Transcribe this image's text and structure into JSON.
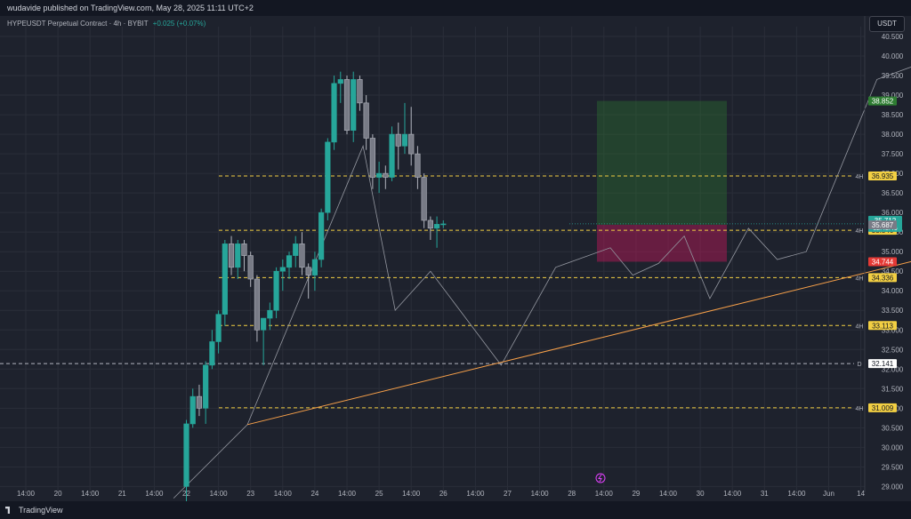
{
  "header": {
    "published": "wudavide published on TradingView.com, May 28, 2025 11:11 UTC+2",
    "symbol": "HYPEUSDT Perpetual Contract · 4h · BYBIT",
    "change": "+0.025 (+0.07%)",
    "currency": "USDT"
  },
  "footer": {
    "logo": "TradingView"
  },
  "colors": {
    "background": "#1e222d",
    "grid": "#2a2e39",
    "up": "#26a69a",
    "down": "#b2b5be",
    "text": "#d1d4dc",
    "level": "#f2cf43",
    "trend": "#f7a049",
    "reward": "#2e7d32",
    "risk": "#c2185b"
  },
  "chart_data": {
    "type": "candlestick",
    "timeframe": "4h",
    "x_tick_labels": [
      "14:00",
      "20",
      "14:00",
      "21",
      "14:00",
      "22",
      "14:00",
      "23",
      "14:00",
      "24",
      "14:00",
      "25",
      "14:00",
      "26",
      "14:00",
      "27",
      "14:00",
      "28",
      "14:00",
      "29",
      "14:00",
      "30",
      "14:00",
      "31",
      "14:00",
      "Jun",
      "14"
    ],
    "y_tick_labels": [
      "29.000",
      "29.500",
      "30.000",
      "30.500",
      "31.000",
      "31.500",
      "32.000",
      "32.500",
      "33.000",
      "33.500",
      "34.000",
      "34.500",
      "35.000",
      "35.500",
      "36.000",
      "36.500",
      "37.000",
      "37.500",
      "38.000",
      "38.500",
      "39.000",
      "39.500",
      "40.000",
      "40.500"
    ],
    "ylim": [
      28.85,
      40.75
    ],
    "candle_start_index": 5,
    "candles": [
      {
        "o": 29.0,
        "h": 30.7,
        "l": 28.6,
        "c": 30.6
      },
      {
        "o": 30.6,
        "h": 31.5,
        "l": 30.5,
        "c": 31.3
      },
      {
        "o": 31.3,
        "h": 31.6,
        "l": 30.8,
        "c": 31.0
      },
      {
        "o": 31.0,
        "h": 32.2,
        "l": 30.6,
        "c": 32.1
      },
      {
        "o": 32.1,
        "h": 33.0,
        "l": 32.0,
        "c": 32.7
      },
      {
        "o": 32.7,
        "h": 33.5,
        "l": 32.4,
        "c": 33.4
      },
      {
        "o": 33.4,
        "h": 35.3,
        "l": 33.1,
        "c": 35.2
      },
      {
        "o": 35.2,
        "h": 35.4,
        "l": 34.4,
        "c": 34.6
      },
      {
        "o": 34.6,
        "h": 35.3,
        "l": 34.3,
        "c": 35.2
      },
      {
        "o": 35.2,
        "h": 35.3,
        "l": 34.5,
        "c": 34.9
      },
      {
        "o": 34.9,
        "h": 35.0,
        "l": 34.1,
        "c": 34.3
      },
      {
        "o": 34.3,
        "h": 34.4,
        "l": 32.7,
        "c": 33.0
      },
      {
        "o": 33.0,
        "h": 33.3,
        "l": 32.1,
        "c": 33.3
      },
      {
        "o": 33.3,
        "h": 33.7,
        "l": 33.0,
        "c": 33.5
      },
      {
        "o": 33.5,
        "h": 34.6,
        "l": 33.3,
        "c": 34.5
      },
      {
        "o": 34.5,
        "h": 34.8,
        "l": 34.0,
        "c": 34.6
      },
      {
        "o": 34.6,
        "h": 35.0,
        "l": 34.3,
        "c": 34.9
      },
      {
        "o": 34.9,
        "h": 35.4,
        "l": 34.6,
        "c": 35.2
      },
      {
        "o": 35.2,
        "h": 35.5,
        "l": 34.4,
        "c": 34.6
      },
      {
        "o": 34.6,
        "h": 34.7,
        "l": 33.8,
        "c": 34.4
      },
      {
        "o": 34.4,
        "h": 35.0,
        "l": 34.0,
        "c": 34.8
      },
      {
        "o": 34.8,
        "h": 36.1,
        "l": 34.6,
        "c": 36.0
      },
      {
        "o": 36.0,
        "h": 37.9,
        "l": 35.8,
        "c": 37.8
      },
      {
        "o": 37.8,
        "h": 39.5,
        "l": 37.6,
        "c": 39.3
      },
      {
        "o": 39.3,
        "h": 39.6,
        "l": 38.8,
        "c": 39.4
      },
      {
        "o": 39.4,
        "h": 39.5,
        "l": 38.0,
        "c": 38.1
      },
      {
        "o": 38.1,
        "h": 39.6,
        "l": 37.8,
        "c": 39.4
      },
      {
        "o": 39.4,
        "h": 39.5,
        "l": 38.6,
        "c": 38.8
      },
      {
        "o": 38.8,
        "h": 39.0,
        "l": 37.6,
        "c": 37.9
      },
      {
        "o": 37.9,
        "h": 38.0,
        "l": 36.6,
        "c": 36.9
      },
      {
        "o": 36.9,
        "h": 37.3,
        "l": 36.5,
        "c": 37.0
      },
      {
        "o": 37.0,
        "h": 37.2,
        "l": 36.6,
        "c": 36.9
      },
      {
        "o": 36.9,
        "h": 38.2,
        "l": 36.8,
        "c": 38.0
      },
      {
        "o": 38.0,
        "h": 38.3,
        "l": 37.1,
        "c": 37.7
      },
      {
        "o": 37.7,
        "h": 38.8,
        "l": 37.5,
        "c": 38.0
      },
      {
        "o": 38.0,
        "h": 38.7,
        "l": 37.2,
        "c": 37.5
      },
      {
        "o": 37.5,
        "h": 37.7,
        "l": 36.6,
        "c": 36.9
      },
      {
        "o": 36.9,
        "h": 37.0,
        "l": 35.6,
        "c": 35.8
      },
      {
        "o": 35.8,
        "h": 35.9,
        "l": 35.3,
        "c": 35.6
      },
      {
        "o": 35.6,
        "h": 35.9,
        "l": 35.1,
        "c": 35.7
      },
      {
        "o": 35.7,
        "h": 35.8,
        "l": 35.6,
        "c": 35.71
      }
    ],
    "levels": [
      {
        "value": 36.935,
        "tf": "4H",
        "label": "36.935"
      },
      {
        "value": 35.546,
        "tf": "4H",
        "label": "35.546"
      },
      {
        "value": 34.336,
        "tf": "4H",
        "label": "34.336"
      },
      {
        "value": 33.113,
        "tf": "4H",
        "label": "33.113"
      },
      {
        "value": 32.141,
        "tf": "D",
        "label": "32.141"
      },
      {
        "value": 31.009,
        "tf": "4H",
        "label": "31.009"
      }
    ],
    "position": {
      "x_start": 46.8,
      "x_end": 50.8,
      "entry": 35.687,
      "target": 38.852,
      "stop": 34.744,
      "target_label": "38.852",
      "entry_label": "35.687",
      "stop_label": "34.744"
    },
    "trendline": {
      "x1": 6.9,
      "y1": 30.58,
      "x2": 50.4,
      "y2": 39.35
    },
    "zigzag": [
      {
        "x": 4.6,
        "y": 28.7
      },
      {
        "x": 6.9,
        "y": 30.58
      },
      {
        "x": 10.5,
        "y": 37.7
      },
      {
        "x": 11.5,
        "y": 33.5
      },
      {
        "x": 12.6,
        "y": 34.5
      },
      {
        "x": 14.8,
        "y": 32.1
      },
      {
        "x": 16.5,
        "y": 34.6
      },
      {
        "x": 18.2,
        "y": 35.1
      },
      {
        "x": 18.9,
        "y": 34.4
      },
      {
        "x": 19.7,
        "y": 34.7
      },
      {
        "x": 20.5,
        "y": 35.4
      },
      {
        "x": 21.3,
        "y": 33.8
      },
      {
        "x": 22.5,
        "y": 35.6
      },
      {
        "x": 23.4,
        "y": 34.8
      },
      {
        "x": 24.3,
        "y": 35.0
      },
      {
        "x": 26.5,
        "y": 39.4
      },
      {
        "x": 28.5,
        "y": 40.0
      },
      {
        "x": 29.5,
        "y": 39.3
      },
      {
        "x": 31.8,
        "y": 36.1
      },
      {
        "x": 33.5,
        "y": 38.8
      },
      {
        "x": 34.5,
        "y": 37.3
      },
      {
        "x": 35.7,
        "y": 38.9
      }
    ],
    "dashed_path": [
      {
        "x": 35.7,
        "y": 38.9
      },
      {
        "x": 36.8,
        "y": 36.8
      },
      {
        "x": 37.8,
        "y": 36.5
      },
      {
        "x": 38.6,
        "y": 35.5
      }
    ],
    "last_price": {
      "value": 35.712,
      "label": "35.712",
      "countdown": "02:48:46"
    }
  }
}
